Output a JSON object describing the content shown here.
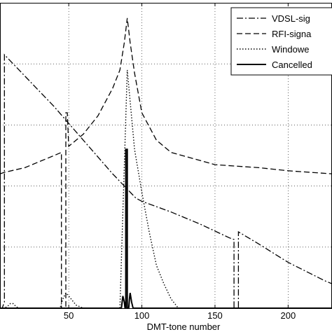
{
  "chart_data": {
    "type": "line",
    "xlabel": "DMT-tone number",
    "ylabel": "",
    "title": "",
    "xlim": [
      3,
      230
    ],
    "ylim": [
      0,
      100
    ],
    "grid": true,
    "legend_position": "top-right",
    "x_ticks": [
      50,
      100,
      150,
      200
    ],
    "x_tick_labels": [
      "50",
      "100",
      "150",
      "200"
    ],
    "series": [
      {
        "name": "VDSL-sig",
        "style": "dashdot",
        "color": "#000000",
        "x": [
          3,
          4.5,
          6,
          6,
          20,
          40,
          60,
          80,
          82,
          85,
          87,
          90,
          93,
          96,
          100,
          120,
          140,
          160,
          163,
          163,
          166,
          166,
          180,
          200,
          225,
          230
        ],
        "y": [
          0,
          0,
          2,
          83,
          76,
          66,
          55,
          44,
          43,
          41.5,
          40.5,
          39,
          37.5,
          36,
          35,
          31.5,
          27.5,
          23,
          22.5,
          0,
          0,
          25,
          21,
          15,
          9,
          8
        ]
      },
      {
        "name": "RFI-signa",
        "style": "dashed",
        "color": "#000000",
        "x": [
          3,
          6,
          20,
          40,
          45,
          45,
          48,
          48,
          49,
          50,
          60,
          70,
          80,
          85,
          88,
          90,
          92,
          95,
          100,
          110,
          120,
          150,
          180,
          200,
          230
        ],
        "y": [
          44,
          44.5,
          46,
          50,
          51,
          0,
          0,
          64,
          64,
          53,
          57,
          63,
          72,
          78,
          87,
          95,
          87,
          77,
          64,
          55,
          51,
          47,
          46,
          45,
          44
        ]
      },
      {
        "name": "Windowe",
        "style": "dotted",
        "color": "#000000",
        "x": [
          3,
          5,
          8,
          10,
          12,
          14,
          16,
          20,
          30,
          40,
          44,
          46,
          48,
          50,
          55,
          60,
          65,
          70,
          75,
          80,
          85,
          90,
          95,
          100,
          105,
          110,
          115,
          120,
          125,
          130,
          135,
          140,
          145,
          150,
          155,
          160,
          165,
          170,
          175,
          180,
          200,
          220,
          230
        ],
        "y": [
          0,
          0,
          0.5,
          1.5,
          1.5,
          0.5,
          0,
          0,
          0,
          0,
          0,
          3,
          5,
          4,
          1,
          0,
          0,
          0,
          0,
          0,
          0,
          78,
          52,
          38,
          25,
          14,
          8,
          3,
          0,
          0,
          0,
          0,
          0,
          0,
          0,
          0,
          0,
          0,
          0,
          0,
          0,
          0,
          0
        ]
      },
      {
        "name": "Cancelled",
        "style": "solid",
        "color": "#000000",
        "x": [
          3,
          86,
          87,
          88,
          88.5,
          89,
          89,
          90,
          90,
          91,
          91.5,
          92,
          93,
          94,
          230
        ],
        "y": [
          0,
          0,
          4,
          2,
          0,
          0,
          52,
          52,
          0,
          0,
          3,
          5,
          2,
          0,
          0
        ]
      }
    ]
  }
}
